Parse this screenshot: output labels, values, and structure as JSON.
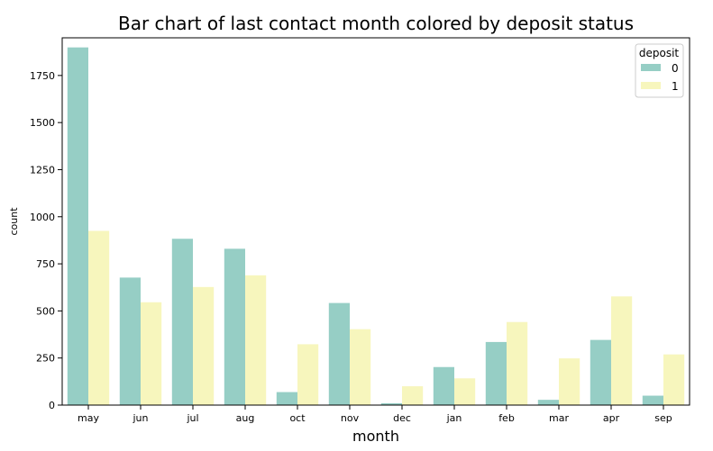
{
  "chart_data": {
    "type": "bar",
    "title": "Bar chart of last contact month colored by deposit status",
    "xlabel": "month",
    "ylabel": "count",
    "categories": [
      "may",
      "jun",
      "jul",
      "aug",
      "oct",
      "nov",
      "dec",
      "jan",
      "feb",
      "mar",
      "apr",
      "sep"
    ],
    "series": [
      {
        "name": "0",
        "color": "#96cec5",
        "values": [
          1899,
          677,
          883,
          830,
          69,
          542,
          10,
          202,
          335,
          28,
          346,
          50
        ]
      },
      {
        "name": "1",
        "color": "#f7f6bd",
        "values": [
          925,
          546,
          627,
          689,
          323,
          403,
          100,
          142,
          441,
          248,
          577,
          269
        ]
      }
    ],
    "ylim": [
      0,
      1950
    ],
    "yticks": [
      0,
      250,
      500,
      750,
      1000,
      1250,
      1500,
      1750
    ],
    "legend": {
      "title": "deposit",
      "placement": "top-right"
    },
    "grid": false
  }
}
